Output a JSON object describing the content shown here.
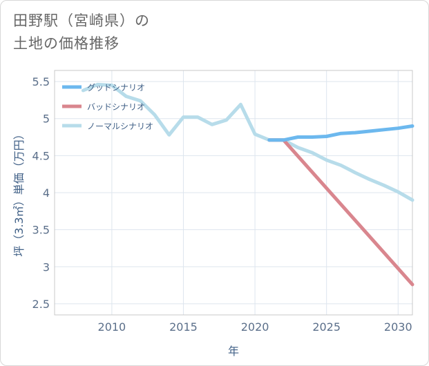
{
  "header": {
    "title_line1": "田野駅（宮崎県）の",
    "title_line2": "土地の価格推移"
  },
  "chart_data": {
    "type": "line",
    "xlabel": "年",
    "ylabel": "坪（3.3㎡）単価（万円）",
    "xlim": [
      2006,
      2031
    ],
    "ylim": [
      2.35,
      5.65
    ],
    "xticks": [
      2010,
      2015,
      2020,
      2025,
      2030
    ],
    "yticks": [
      2.5,
      3,
      3.5,
      4,
      4.5,
      5,
      5.5
    ],
    "ytick_labels": [
      "2.5",
      "3",
      "3.5",
      "4",
      "4.5",
      "5",
      "5.5"
    ],
    "grid": true,
    "legend_position": "top-left",
    "series": [
      {
        "name": "グッドシナリオ",
        "color": "#6cb8ee",
        "x": [
          2021,
          2022,
          2023,
          2024,
          2025,
          2026,
          2027,
          2028,
          2029,
          2030,
          2031
        ],
        "y": [
          4.71,
          4.71,
          4.75,
          4.75,
          4.76,
          4.8,
          4.81,
          4.83,
          4.85,
          4.87,
          4.9
        ]
      },
      {
        "name": "バッドシナリオ",
        "color": "#d9868e",
        "x": [
          2021,
          2022,
          2031
        ],
        "y": [
          4.71,
          4.71,
          2.76
        ]
      },
      {
        "name": "ノーマルシナリオ",
        "color": "#b7dcea",
        "x": [
          2008,
          2009,
          2010,
          2011,
          2012,
          2013,
          2014,
          2015,
          2016,
          2017,
          2018,
          2019,
          2020,
          2021,
          2022,
          2023,
          2024,
          2025,
          2026,
          2027,
          2028,
          2029,
          2030,
          2031
        ],
        "y": [
          5.38,
          5.46,
          5.45,
          5.3,
          5.24,
          5.05,
          4.78,
          5.02,
          5.02,
          4.92,
          4.98,
          5.19,
          4.79,
          4.71,
          4.71,
          4.61,
          4.54,
          4.44,
          4.37,
          4.27,
          4.18,
          4.1,
          4.01,
          3.9
        ]
      }
    ]
  }
}
